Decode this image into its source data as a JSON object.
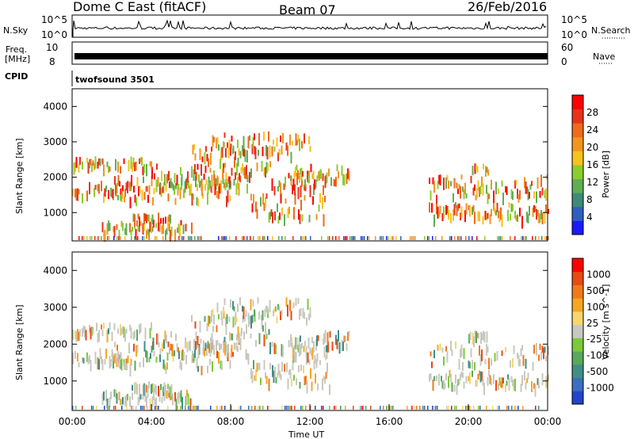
{
  "header": {
    "title": "Dome C East (fitACF)",
    "beam": "Beam 07",
    "date": "26/Feb/2016"
  },
  "strips": {
    "nsky": {
      "label": "N.Sky",
      "ticks": [
        "10^5",
        "10^0"
      ]
    },
    "nsearch": {
      "label": "N.Search",
      "ticks": [
        "10^5",
        "10^0"
      ]
    },
    "freq": {
      "label_line1": "Freq.",
      "label_line2": "[MHz]",
      "ticks": [
        "10",
        "8"
      ]
    },
    "nave": {
      "label": "Nave",
      "ticks": [
        "60",
        "0"
      ]
    },
    "cpid": {
      "label": "CPID",
      "program": "twofsound 3501"
    }
  },
  "chart_data": [
    {
      "type": "heatmap",
      "name": "power",
      "ylabel": "Slant Range [km]",
      "yticks": [
        "1000",
        "2000",
        "3000",
        "4000"
      ],
      "ylim": [
        200,
        4500
      ],
      "xlim": [
        0,
        24
      ],
      "colorbar": {
        "label": "Power [dB]",
        "ticks": [
          "4",
          "8",
          "12",
          "16",
          "20",
          "24",
          "28"
        ],
        "range": [
          0,
          32
        ],
        "colors": [
          "#1a1aff",
          "#2e5fbf",
          "#3d8a78",
          "#5fae55",
          "#8ccd2e",
          "#f7c21a",
          "#f59320",
          "#ef6a1b",
          "#e8331a",
          "#ff0000"
        ]
      }
    },
    {
      "type": "heatmap",
      "name": "velocity",
      "ylabel": "Slant Range [km]",
      "yticks": [
        "1000",
        "2000",
        "3000",
        "4000"
      ],
      "ylim": [
        200,
        4500
      ],
      "xlim": [
        0,
        24
      ],
      "xlabel": "Time UT",
      "xticks": [
        "00:00",
        "04:00",
        "08:00",
        "12:00",
        "16:00",
        "20:00",
        "00:00"
      ],
      "colorbar": {
        "label": "Velocity [m s^-1]",
        "ticks": [
          "1000",
          "500",
          "100",
          "25",
          "-25",
          "-100",
          "-500",
          "-1000"
        ],
        "colors": [
          "#2244cc",
          "#3a6fbf",
          "#3f8f86",
          "#5aa85a",
          "#7cc93a",
          "#c8c8c0",
          "#f5d76e",
          "#f5a623",
          "#f07a1a",
          "#e84a14",
          "#ff0000"
        ]
      }
    }
  ]
}
